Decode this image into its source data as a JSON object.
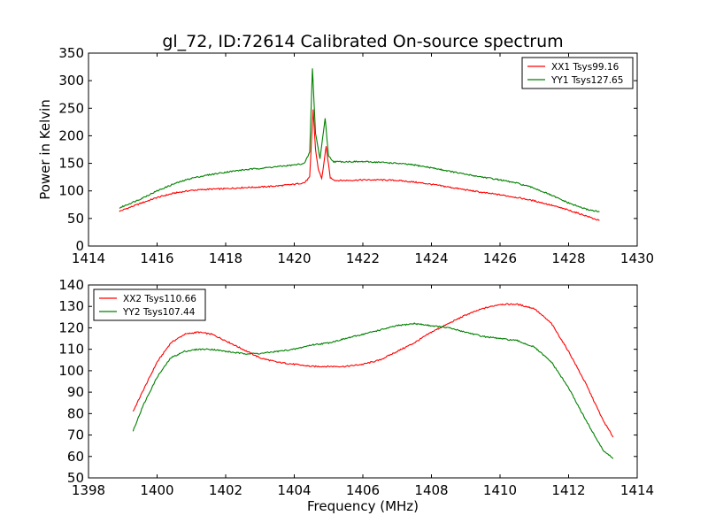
{
  "title": "gl_72, ID:72614 Calibrated On-source spectrum",
  "colors": {
    "red": "#ff0000",
    "green": "#008000"
  },
  "chart_data": [
    {
      "type": "line",
      "xlabel": "",
      "ylabel": "Power in Kelvin",
      "xlim": [
        1414,
        1430
      ],
      "ylim": [
        0,
        350
      ],
      "xticks": [
        1414,
        1416,
        1418,
        1420,
        1422,
        1424,
        1426,
        1428,
        1430
      ],
      "yticks": [
        0,
        50,
        100,
        150,
        200,
        250,
        300,
        350
      ],
      "legend": "top-right",
      "series": [
        {
          "name": "XX1 Tsys99.16",
          "color": "red",
          "x": [
            1414.9,
            1415.5,
            1416,
            1416.5,
            1417,
            1417.5,
            1418,
            1418.5,
            1419,
            1419.5,
            1420,
            1420.3,
            1420.45,
            1420.55,
            1420.62,
            1420.7,
            1420.8,
            1420.93,
            1421.05,
            1421.2,
            1421.5,
            1422,
            1422.5,
            1423,
            1423.5,
            1424,
            1424.5,
            1425,
            1425.5,
            1426,
            1426.5,
            1427,
            1427.5,
            1428,
            1428.5,
            1428.9
          ],
          "y": [
            63,
            77,
            88,
            96,
            101,
            103,
            104,
            106,
            107,
            109,
            112,
            115,
            125,
            248,
            175,
            140,
            122,
            180,
            124,
            119,
            119,
            120,
            120,
            119,
            116,
            112,
            107,
            102,
            97,
            93,
            88,
            82,
            74,
            65,
            55,
            46
          ]
        },
        {
          "name": "YY1 Tsys127.65",
          "color": "green",
          "x": [
            1414.9,
            1415.5,
            1416,
            1416.5,
            1417,
            1417.5,
            1418,
            1418.5,
            1419,
            1419.5,
            1420,
            1420.3,
            1420.45,
            1420.53,
            1420.62,
            1420.75,
            1420.9,
            1421.0,
            1421.15,
            1421.5,
            1422,
            1422.5,
            1423,
            1423.5,
            1424,
            1424.5,
            1425,
            1425.5,
            1426,
            1426.5,
            1427,
            1427.5,
            1428,
            1428.5,
            1428.9
          ],
          "y": [
            69,
            85,
            100,
            113,
            123,
            129,
            134,
            138,
            141,
            144,
            147,
            150,
            170,
            322,
            205,
            158,
            232,
            163,
            153,
            153,
            153,
            152,
            150,
            147,
            142,
            136,
            130,
            125,
            120,
            114,
            105,
            92,
            78,
            67,
            62
          ]
        }
      ]
    },
    {
      "type": "line",
      "xlabel": "Frequency (MHz)",
      "ylabel": "",
      "xlim": [
        1398,
        1414
      ],
      "ylim": [
        50,
        140
      ],
      "xticks": [
        1398,
        1400,
        1402,
        1404,
        1406,
        1408,
        1410,
        1412,
        1414
      ],
      "yticks": [
        50,
        60,
        70,
        80,
        90,
        100,
        110,
        120,
        130,
        140
      ],
      "legend": "top-left",
      "series": [
        {
          "name": "XX2 Tsys110.66",
          "color": "red",
          "x": [
            1399.3,
            1399.6,
            1400,
            1400.4,
            1400.8,
            1401.2,
            1401.6,
            1402,
            1402.5,
            1403,
            1403.5,
            1404,
            1404.5,
            1405,
            1405.5,
            1406,
            1406.5,
            1407,
            1407.5,
            1408,
            1408.5,
            1409,
            1409.5,
            1410,
            1410.5,
            1411,
            1411.5,
            1412,
            1412.5,
            1413,
            1413.3
          ],
          "y": [
            81,
            91,
            104,
            113,
            117,
            118,
            117,
            114,
            110,
            106,
            104,
            103,
            102,
            102,
            102,
            103,
            105,
            109,
            113,
            118,
            122,
            126,
            129,
            131,
            131,
            129,
            122,
            109,
            94,
            77,
            69
          ]
        },
        {
          "name": "YY2 Tsys107.44",
          "color": "green",
          "x": [
            1399.3,
            1399.6,
            1400,
            1400.4,
            1400.8,
            1401.2,
            1401.6,
            1402,
            1402.5,
            1403,
            1403.5,
            1404,
            1404.5,
            1405,
            1405.5,
            1406,
            1406.5,
            1407,
            1407.5,
            1408,
            1408.5,
            1409,
            1409.5,
            1410,
            1410.5,
            1411,
            1411.5,
            1412,
            1412.5,
            1413,
            1413.3
          ],
          "y": [
            72,
            84,
            97,
            106,
            109,
            110,
            110,
            109,
            108,
            108,
            109,
            110,
            112,
            113,
            115,
            117,
            119,
            121,
            122,
            121,
            120,
            118,
            116,
            115,
            114,
            111,
            104,
            92,
            77,
            63,
            59
          ]
        }
      ]
    }
  ]
}
